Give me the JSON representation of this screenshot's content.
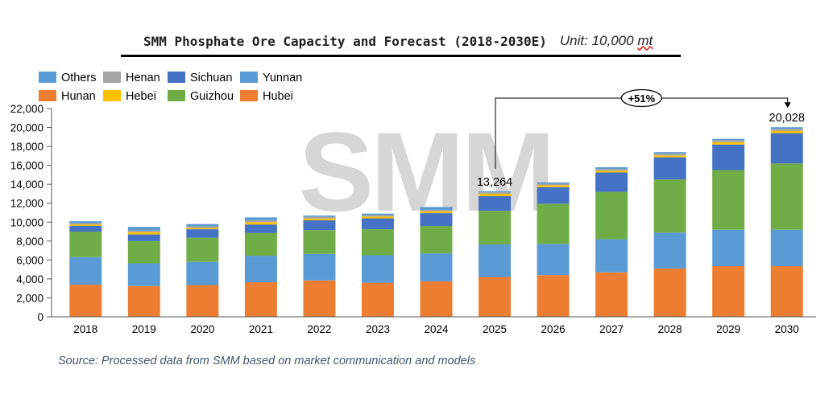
{
  "title": "SMM Phosphate Ore Capacity and Forecast (2018-2030E)",
  "unit_label": "Unit: 10,000",
  "unit_value": "mt",
  "source": "Source: Processed data from SMM based on market communication and models",
  "watermark": "SMM",
  "colors": {
    "Hubei": "#ed7d31",
    "Yunnan": "#5b9bd5",
    "Guizhou": "#70ad47",
    "Sichuan": "#4472c4",
    "Hebei": "#ffc000",
    "Henan": "#a5a5a5",
    "Others": "#5b9bd5",
    "Hunan": "#ed7d31"
  },
  "chart_data": {
    "type": "bar",
    "stacked": true,
    "categories": [
      "2018",
      "2019",
      "2020",
      "2021",
      "2022",
      "2023",
      "2024",
      "2025",
      "2026",
      "2027",
      "2028",
      "2029",
      "2030"
    ],
    "ylim": [
      0,
      22000
    ],
    "yticks": [
      0,
      2000,
      4000,
      6000,
      8000,
      10000,
      12000,
      14000,
      16000,
      18000,
      20000,
      22000
    ],
    "ytick_labels": [
      "0",
      "2,000",
      "4,000",
      "6,000",
      "8,000",
      "10,000",
      "12,000",
      "14,000",
      "16,000",
      "18,000",
      "20,000",
      "22,000"
    ],
    "legend": [
      "Others",
      "Henan",
      "Sichuan",
      "Yunnan",
      "Hunan",
      "Hebei",
      "Guizhou",
      "Hubei"
    ],
    "legend_position": "top-left",
    "series": [
      {
        "name": "Hubei",
        "values": [
          3400,
          3250,
          3350,
          3650,
          3850,
          3600,
          3750,
          4200,
          4400,
          4700,
          5100,
          5350,
          5350
        ]
      },
      {
        "name": "Yunnan",
        "values": [
          2900,
          2400,
          2450,
          2800,
          2800,
          2900,
          2950,
          3450,
          3300,
          3500,
          3800,
          3850,
          3850
        ]
      },
      {
        "name": "Guizhou",
        "values": [
          2700,
          2350,
          2550,
          2400,
          2500,
          2750,
          2900,
          3550,
          4250,
          5000,
          5600,
          6300,
          7000
        ]
      },
      {
        "name": "Sichuan",
        "values": [
          600,
          700,
          900,
          900,
          1050,
          1150,
          1350,
          1550,
          1750,
          2050,
          2350,
          2700,
          3200
        ]
      },
      {
        "name": "Hebei",
        "values": [
          150,
          250,
          150,
          250,
          200,
          200,
          200,
          250,
          200,
          200,
          200,
          250,
          250
        ]
      },
      {
        "name": "Henan",
        "values": [
          150,
          150,
          150,
          200,
          150,
          150,
          150,
          150,
          150,
          150,
          200,
          200,
          200
        ]
      },
      {
        "name": "Others",
        "values": [
          200,
          400,
          250,
          300,
          150,
          150,
          300,
          114,
          150,
          200,
          150,
          150,
          178
        ]
      },
      {
        "name": "Hunan",
        "values": [
          0,
          0,
          0,
          0,
          0,
          0,
          0,
          0,
          0,
          0,
          0,
          0,
          0
        ]
      }
    ],
    "annotations": [
      {
        "category": "2025",
        "text": "13,264"
      },
      {
        "category": "2030",
        "text": "20,028"
      },
      {
        "from": "2025",
        "to": "2030",
        "text": "+51%"
      }
    ]
  }
}
